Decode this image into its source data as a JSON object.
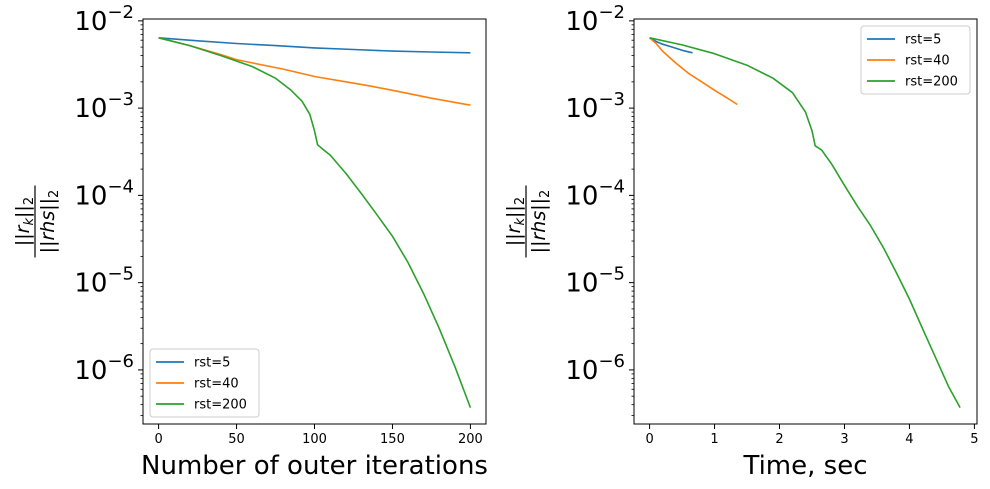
{
  "chart_data": [
    {
      "type": "line",
      "xlabel": "Number of outer iterations",
      "ylabel": "||r_k||_2 / ||rhs||_2",
      "yscale": "log",
      "xlim": [
        -10,
        210
      ],
      "ylim": [
        2.4e-07,
        0.0105
      ],
      "xticks": [
        0,
        50,
        100,
        150,
        200
      ],
      "xtick_labels": [
        "0",
        "50",
        "100",
        "150",
        "200"
      ],
      "yticks": [
        0.01,
        0.001,
        0.0001,
        1e-05,
        1e-06
      ],
      "ytick_labels": [
        "10^-2",
        "10^-3",
        "10^-4",
        "10^-5",
        "10^-6"
      ],
      "legend_position": "lower-left",
      "grid": false,
      "series": [
        {
          "name": "rst=5",
          "color": "#1f77b4",
          "points": [
            [
              0,
              0.0064
            ],
            [
              25,
              0.0059
            ],
            [
              50,
              0.0055
            ],
            [
              75,
              0.0052
            ],
            [
              100,
              0.0049
            ],
            [
              125,
              0.0047
            ],
            [
              150,
              0.0045
            ],
            [
              175,
              0.0044
            ],
            [
              200,
              0.0043
            ]
          ]
        },
        {
          "name": "rst=40",
          "color": "#ff7f0e",
          "points": [
            [
              0,
              0.0064
            ],
            [
              20,
              0.0052
            ],
            [
              40,
              0.0041
            ],
            [
              50,
              0.0036
            ],
            [
              60,
              0.0033
            ],
            [
              80,
              0.0028
            ],
            [
              100,
              0.0023
            ],
            [
              120,
              0.002
            ],
            [
              135,
              0.0018
            ],
            [
              150,
              0.0016
            ],
            [
              175,
              0.0013
            ],
            [
              200,
              0.00108
            ]
          ]
        },
        {
          "name": "rst=200",
          "color": "#2ca02c",
          "points": [
            [
              0,
              0.0064
            ],
            [
              20,
              0.0052
            ],
            [
              40,
              0.004
            ],
            [
              60,
              0.003
            ],
            [
              75,
              0.0022
            ],
            [
              85,
              0.0016
            ],
            [
              92,
              0.0012
            ],
            [
              97,
              0.00085
            ],
            [
              100,
              0.00055
            ],
            [
              102,
              0.00038
            ],
            [
              106,
              0.00033
            ],
            [
              110,
              0.00029
            ],
            [
              120,
              0.00018
            ],
            [
              130,
              0.000105
            ],
            [
              140,
              6e-05
            ],
            [
              150,
              3.4e-05
            ],
            [
              160,
              1.7e-05
            ],
            [
              170,
              7.5e-06
            ],
            [
              180,
              3e-06
            ],
            [
              190,
              1.1e-06
            ],
            [
              200,
              3.7e-07
            ]
          ]
        }
      ]
    },
    {
      "type": "line",
      "xlabel": "Time, sec",
      "ylabel": "||r_k||_2 / ||rhs||_2",
      "yscale": "log",
      "xlim": [
        -0.24,
        5.04
      ],
      "ylim": [
        2.4e-07,
        0.0105
      ],
      "xticks": [
        0,
        1,
        2,
        3,
        4,
        5
      ],
      "xtick_labels": [
        "0",
        "1",
        "2",
        "3",
        "4",
        "5"
      ],
      "yticks": [
        0.01,
        0.001,
        0.0001,
        1e-05,
        1e-06
      ],
      "ytick_labels": [
        "10^-2",
        "10^-3",
        "10^-4",
        "10^-5",
        "10^-6"
      ],
      "legend_position": "upper-right",
      "grid": false,
      "series": [
        {
          "name": "rst=5",
          "color": "#1f77b4",
          "points": [
            [
              0,
              0.0064
            ],
            [
              0.1,
              0.0058
            ],
            [
              0.2,
              0.0054
            ],
            [
              0.35,
              0.005
            ],
            [
              0.5,
              0.0046
            ],
            [
              0.66,
              0.0043
            ]
          ]
        },
        {
          "name": "rst=40",
          "color": "#ff7f0e",
          "points": [
            [
              0,
              0.0064
            ],
            [
              0.1,
              0.0055
            ],
            [
              0.2,
              0.0045
            ],
            [
              0.4,
              0.0033
            ],
            [
              0.6,
              0.0025
            ],
            [
              0.8,
              0.002
            ],
            [
              1.0,
              0.0016
            ],
            [
              1.2,
              0.0013
            ],
            [
              1.35,
              0.0011
            ]
          ]
        },
        {
          "name": "rst=200",
          "color": "#2ca02c",
          "points": [
            [
              0,
              0.0064
            ],
            [
              0.5,
              0.0053
            ],
            [
              1.0,
              0.0042
            ],
            [
              1.5,
              0.0031
            ],
            [
              1.9,
              0.0022
            ],
            [
              2.2,
              0.0015
            ],
            [
              2.4,
              0.0009
            ],
            [
              2.5,
              0.00055
            ],
            [
              2.55,
              0.00037
            ],
            [
              2.65,
              0.00033
            ],
            [
              2.8,
              0.00023
            ],
            [
              3.0,
              0.00013
            ],
            [
              3.2,
              7.5e-05
            ],
            [
              3.4,
              4.5e-05
            ],
            [
              3.6,
              2.5e-05
            ],
            [
              3.8,
              1.3e-05
            ],
            [
              4.0,
              6.5e-06
            ],
            [
              4.2,
              3e-06
            ],
            [
              4.4,
              1.4e-06
            ],
            [
              4.6,
              6.5e-07
            ],
            [
              4.78,
              3.7e-07
            ]
          ]
        }
      ]
    }
  ]
}
